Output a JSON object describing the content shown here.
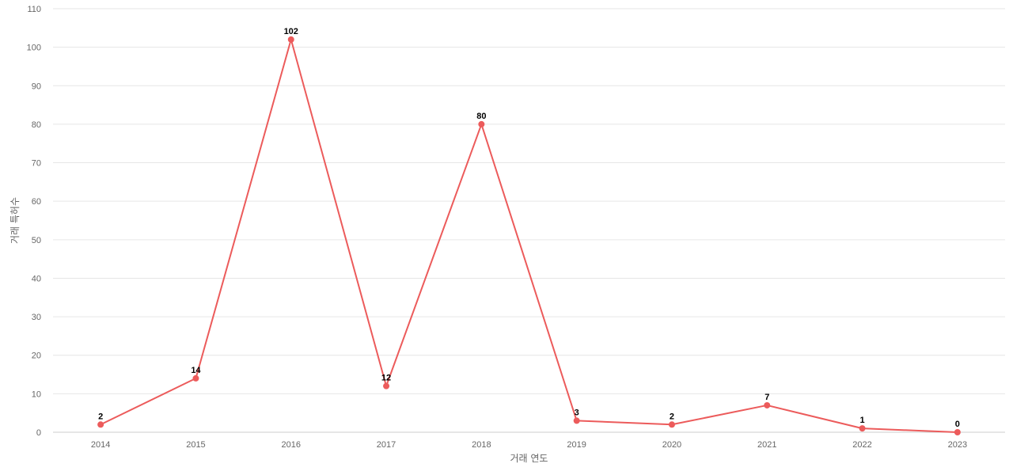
{
  "chart_data": {
    "type": "line",
    "categories": [
      "2014",
      "2015",
      "2016",
      "2017",
      "2018",
      "2019",
      "2020",
      "2021",
      "2022",
      "2023"
    ],
    "series": [
      {
        "values": [
          2,
          14,
          102,
          12,
          80,
          3,
          2,
          7,
          1,
          0
        ]
      }
    ],
    "xlabel": "거래 연도",
    "ylabel": "거래 특허수",
    "ylim": [
      0,
      110
    ],
    "yticks": [
      0,
      10,
      20,
      30,
      40,
      50,
      60,
      70,
      80,
      90,
      100,
      110
    ],
    "grid": true,
    "legend": "none",
    "colors": {
      "series": "#ec5b5b",
      "grid": "#e6e6e6",
      "tick_text": "#666666",
      "label_text": "#000000"
    }
  }
}
